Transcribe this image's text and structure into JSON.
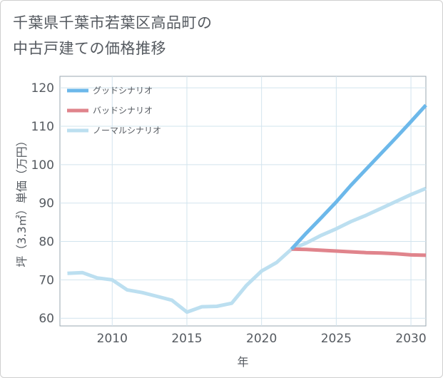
{
  "title": {
    "line1": "千葉県千葉市若葉区高品町の",
    "line2": "中古戸建ての価格推移"
  },
  "chart_data": {
    "type": "line",
    "xlabel": "年",
    "ylabel": "坪（3.3㎡）単価（万円）",
    "xlim": [
      2006.5,
      2031
    ],
    "ylim": [
      58,
      123
    ],
    "x_ticks": [
      "2010",
      "2015",
      "2020",
      "2025",
      "2030"
    ],
    "y_ticks": [
      "60",
      "70",
      "80",
      "90",
      "100",
      "110",
      "120"
    ],
    "grid": true,
    "legend_position": "top-left",
    "series": [
      {
        "name": "グッドシナリオ",
        "color": "#6cb8ea",
        "x": [
          2022,
          2023,
          2024,
          2025,
          2026,
          2027,
          2028,
          2029,
          2030,
          2031
        ],
        "y": [
          78.0,
          82.2,
          86.2,
          90.3,
          94.7,
          98.8,
          102.9,
          107.0,
          111.2,
          115.5
        ]
      },
      {
        "name": "バッドシナリオ",
        "color": "#e0848c",
        "x": [
          2022,
          2023,
          2024,
          2025,
          2026,
          2027,
          2028,
          2029,
          2030,
          2031
        ],
        "y": [
          78.0,
          77.9,
          77.7,
          77.5,
          77.3,
          77.1,
          77.0,
          76.8,
          76.5,
          76.4
        ]
      },
      {
        "name": "ノーマルシナリオ",
        "color": "#bcdff0",
        "x": [
          2007,
          2008,
          2009,
          2010,
          2011,
          2012,
          2013,
          2014,
          2015,
          2016,
          2017,
          2018,
          2019,
          2020,
          2021,
          2022,
          2023,
          2024,
          2025,
          2026,
          2027,
          2028,
          2029,
          2030,
          2031
        ],
        "y": [
          71.7,
          71.9,
          70.5,
          70.0,
          67.4,
          66.7,
          65.7,
          64.7,
          61.6,
          63.0,
          63.1,
          63.9,
          68.6,
          72.3,
          74.5,
          78.0,
          79.6,
          81.6,
          83.3,
          85.2,
          86.8,
          88.6,
          90.4,
          92.2,
          93.8
        ]
      }
    ]
  }
}
